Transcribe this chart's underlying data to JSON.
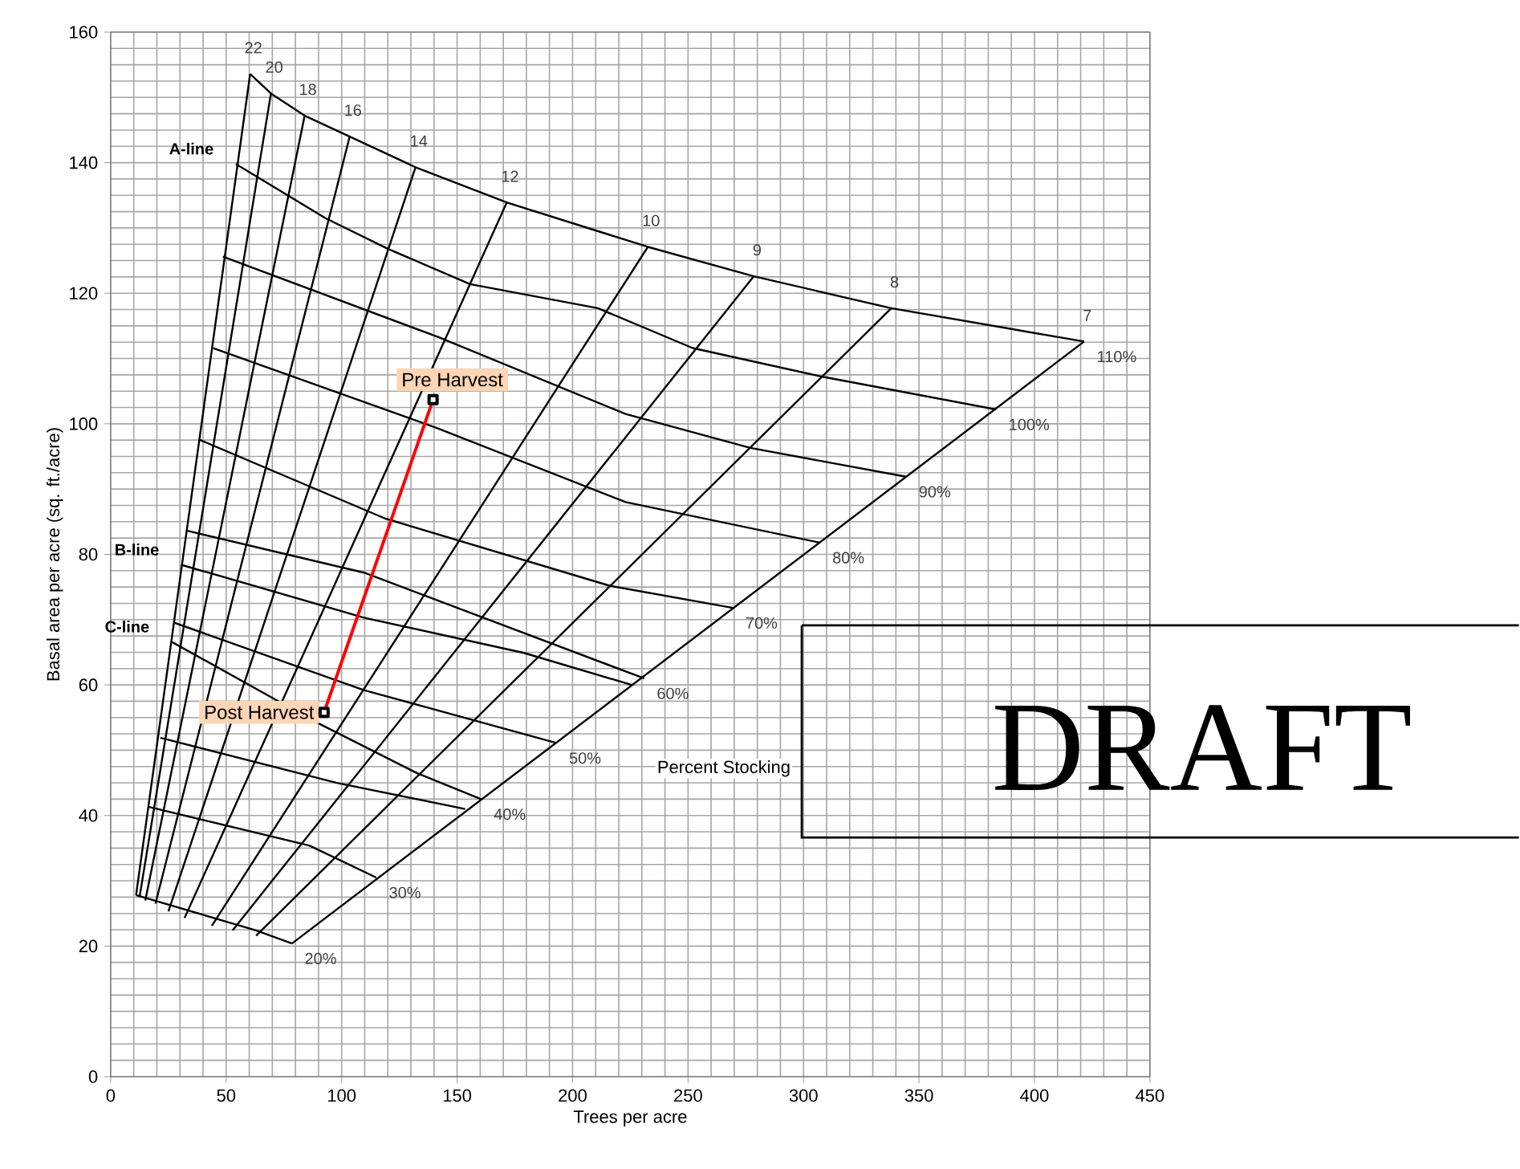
{
  "chart_data": {
    "type": "line",
    "xlabel": "Trees per acre",
    "ylabel": "Basal area per acre (sq. ft./acre)",
    "xlim": [
      0,
      450
    ],
    "ylim": [
      0,
      160
    ],
    "xticks": [
      0,
      50,
      100,
      150,
      200,
      250,
      300,
      350,
      400,
      450
    ],
    "yticks": [
      0,
      20,
      40,
      60,
      80,
      100,
      120,
      140,
      160
    ],
    "grid": true,
    "marker": "none",
    "series": [
      {
        "color": "#000000",
        "x": [
          60.4,
          69.4,
          84,
          103.5,
          132,
          171.5,
          232.6,
          278.5,
          338,
          421.5
        ],
        "values": [
          153.6,
          150.6,
          147.2,
          144,
          139.3,
          133.9,
          127.1,
          122.6,
          117.7,
          112.6
        ]
      },
      {
        "color": "#000000",
        "x": [
          54.2,
          93,
          120,
          155.6,
          211,
          252,
          308.3,
          383.3
        ],
        "values": [
          139.8,
          131.5,
          126.8,
          121.4,
          117.7,
          111.6,
          107.2,
          102.2
        ]
      },
      {
        "color": "#000000",
        "x": [
          48.6,
          141.7,
          223,
          277,
          344.4
        ],
        "values": [
          125.6,
          113.3,
          101.5,
          96.3,
          91.9
        ]
      },
      {
        "color": "#000000",
        "x": [
          44.4,
          141.7,
          223,
          307
        ],
        "values": [
          111.6,
          99.3,
          88,
          81.8
        ]
      },
      {
        "color": "#000000",
        "x": [
          38.2,
          118.8,
          216,
          269.4
        ],
        "values": [
          97.6,
          85.5,
          75.2,
          71.8
        ]
      },
      {
        "color": "#000000",
        "x": [
          33.3,
          109.7,
          231
        ],
        "values": [
          83.6,
          77.2,
          61
        ]
      },
      {
        "color": "#000000",
        "x": [
          30.6,
          109.7,
          179,
          225.7
        ],
        "values": [
          78.4,
          70.3,
          64.9,
          60
        ]
      },
      {
        "color": "#000000",
        "x": [
          27.8,
          109.7,
          193
        ],
        "values": [
          69.5,
          59.2,
          51.1
        ]
      },
      {
        "color": "#000000",
        "x": [
          26.4,
          88.9,
          132.6,
          160.4
        ],
        "values": [
          66.6,
          54.3,
          46.5,
          42.5
        ]
      },
      {
        "color": "#000000",
        "x": [
          21.5,
          98,
          153.5
        ],
        "values": [
          51.9,
          45,
          41
        ]
      },
      {
        "color": "#000000",
        "x": [
          16.7,
          86,
          115
        ],
        "values": [
          41.3,
          35.4,
          30.5
        ]
      },
      {
        "color": "#000000",
        "x": [
          11,
          63,
          78.5
        ],
        "values": [
          27.8,
          22.4,
          20.4
        ]
      },
      {
        "color": "#000000",
        "x": [
          11,
          60.4
        ],
        "values": [
          27.8,
          153.6
        ]
      },
      {
        "color": "#000000",
        "x": [
          12.5,
          69.4
        ],
        "values": [
          27.5,
          150.6
        ]
      },
      {
        "color": "#000000",
        "x": [
          15,
          84
        ],
        "values": [
          27,
          147.2
        ]
      },
      {
        "color": "#000000",
        "x": [
          19.4,
          103.5
        ],
        "values": [
          26.5,
          144
        ]
      },
      {
        "color": "#000000",
        "x": [
          25,
          132
        ],
        "values": [
          25.3,
          139.3
        ]
      },
      {
        "color": "#000000",
        "x": [
          32,
          171.5
        ],
        "values": [
          24.3,
          133.9
        ]
      },
      {
        "color": "#000000",
        "x": [
          43.8,
          232.6
        ],
        "values": [
          23.1,
          127.1
        ]
      },
      {
        "color": "#000000",
        "x": [
          52.8,
          278.5
        ],
        "values": [
          22.4,
          122.6
        ]
      },
      {
        "color": "#000000",
        "x": [
          63,
          338
        ],
        "values": [
          21.6,
          117.7
        ]
      },
      {
        "color": "#000000",
        "x": [
          78.5,
          421.5
        ],
        "values": [
          20.4,
          112.6
        ]
      },
      {
        "color": "#ff0000",
        "x": [
          139.6,
          92.4
        ],
        "values": [
          103.7,
          55.8
        ],
        "marker": "square"
      }
    ],
    "annotations": [
      {
        "text": "22",
        "x": 60.4,
        "y": 153.6
      },
      {
        "text": "20",
        "x": 69.4,
        "y": 150.6
      },
      {
        "text": "18",
        "x": 84,
        "y": 147.2
      },
      {
        "text": "16",
        "x": 103.5,
        "y": 144
      },
      {
        "text": "14",
        "x": 132,
        "y": 139.3
      },
      {
        "text": "12",
        "x": 171.5,
        "y": 133.9
      },
      {
        "text": "10",
        "x": 232.6,
        "y": 127.1
      },
      {
        "text": "9",
        "x": 278.5,
        "y": 122.6
      },
      {
        "text": "8",
        "x": 338,
        "y": 117.7
      },
      {
        "text": "7",
        "x": 421.5,
        "y": 112.6
      },
      {
        "text": "110%",
        "x": 421.5,
        "y": 112.6
      },
      {
        "text": "100%",
        "x": 383.3,
        "y": 102.2
      },
      {
        "text": "90%",
        "x": 344.4,
        "y": 91.9
      },
      {
        "text": "80%",
        "x": 307,
        "y": 81.8
      },
      {
        "text": "70%",
        "x": 269.4,
        "y": 71.8
      },
      {
        "text": "60%",
        "x": 231,
        "y": 61
      },
      {
        "text": "50%",
        "x": 193,
        "y": 51.1
      },
      {
        "text": "40%",
        "x": 160.4,
        "y": 42.5
      },
      {
        "text": "30%",
        "x": 115,
        "y": 30.5
      },
      {
        "text": "20%",
        "x": 78.5,
        "y": 20.4
      },
      {
        "text": "A-line",
        "x": 54.2,
        "y": 139.8
      },
      {
        "text": "B-line",
        "x": 30.6,
        "y": 78.4
      },
      {
        "text": "C-line",
        "x": 26.4,
        "y": 66.6
      },
      {
        "text": "Pre Harvest",
        "x": 139.6,
        "y": 103.7
      },
      {
        "text": "Post Harvest",
        "x": 92.4,
        "y": 55.8
      },
      "Percent Stocking",
      "DRAFT"
    ]
  }
}
